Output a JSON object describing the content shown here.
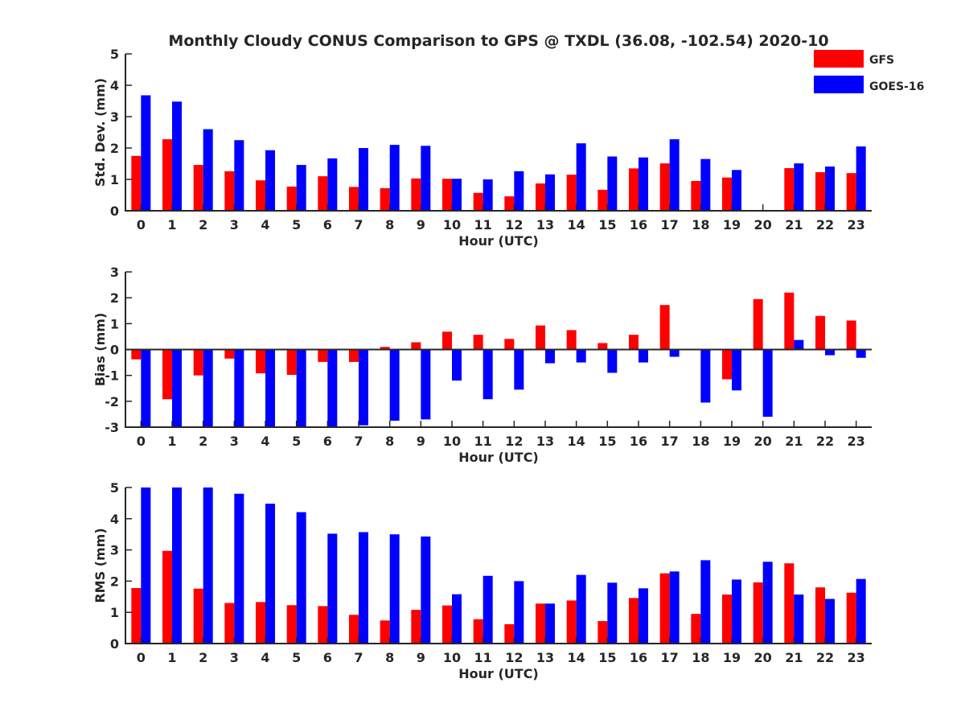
{
  "colors": {
    "gfs": "#ff0000",
    "goes": "#0000ff",
    "axis": "#262626",
    "background": "#ffffff"
  },
  "chart_data": {
    "type": "bar",
    "title": "Monthly Cloudy CONUS Comparison to GPS @ TXDL (36.08, -102.54) 2020-10",
    "legend": {
      "placement": "top-right",
      "entries": [
        "GFS",
        "GOES-16"
      ]
    },
    "categories": [
      "0",
      "1",
      "2",
      "3",
      "4",
      "5",
      "6",
      "7",
      "8",
      "9",
      "10",
      "11",
      "12",
      "13",
      "14",
      "15",
      "16",
      "17",
      "18",
      "19",
      "20",
      "21",
      "22",
      "23"
    ],
    "panels": [
      {
        "ylabel": "Std. Dev. (mm)",
        "xlabel": "Hour (UTC)",
        "ylim": [
          0,
          5
        ],
        "yticks": [
          "0",
          "1",
          "2",
          "3",
          "4",
          "5"
        ],
        "series": [
          {
            "name": "GFS",
            "values": [
              1.75,
              2.28,
              1.46,
              1.26,
              0.97,
              0.77,
              1.1,
              0.76,
              0.72,
              1.03,
              1.02,
              0.57,
              0.46,
              0.87,
              1.15,
              0.67,
              1.35,
              1.51,
              0.95,
              1.06,
              null,
              1.36,
              1.23,
              1.2
            ]
          },
          {
            "name": "GOES-16",
            "values": [
              3.68,
              3.48,
              2.6,
              2.25,
              1.93,
              1.46,
              1.67,
              2.0,
              2.1,
              2.07,
              1.02,
              1.0,
              1.26,
              1.16,
              2.15,
              1.73,
              1.7,
              2.28,
              1.65,
              1.3,
              null,
              1.51,
              1.41,
              2.05
            ]
          }
        ]
      },
      {
        "ylabel": "Bias (mm)",
        "xlabel": "Hour (UTC)",
        "ylim": [
          -3,
          3
        ],
        "yticks": [
          "-3",
          "-2",
          "-1",
          "0",
          "1",
          "2",
          "3"
        ],
        "series": [
          {
            "name": "GFS",
            "values": [
              -0.38,
              -1.92,
              -1.0,
              -0.35,
              -0.92,
              -0.98,
              -0.48,
              -0.48,
              0.1,
              0.28,
              0.69,
              0.57,
              0.41,
              0.93,
              0.75,
              0.25,
              0.57,
              1.72,
              null,
              -1.15,
              1.95,
              2.2,
              1.3,
              1.12
            ]
          },
          {
            "name": "GOES-16",
            "values": [
              -3.0,
              -3.0,
              -3.0,
              -3.0,
              -3.0,
              -3.0,
              -3.0,
              -2.93,
              -2.75,
              -2.7,
              -1.2,
              -1.92,
              -1.55,
              -0.53,
              -0.5,
              -0.9,
              -0.5,
              -0.28,
              -2.05,
              -1.58,
              -2.6,
              0.37,
              -0.22,
              -0.32
            ]
          }
        ]
      },
      {
        "ylabel": "RMS (mm)",
        "xlabel": "Hour (UTC)",
        "ylim": [
          0,
          5
        ],
        "yticks": [
          "0",
          "1",
          "2",
          "3",
          "4",
          "5"
        ],
        "series": [
          {
            "name": "GFS",
            "values": [
              1.78,
              2.97,
              1.76,
              1.3,
              1.33,
              1.23,
              1.2,
              0.92,
              0.74,
              1.08,
              1.22,
              0.78,
              0.62,
              1.28,
              1.38,
              0.72,
              1.46,
              2.25,
              0.95,
              1.57,
              1.96,
              2.57,
              1.8,
              1.63
            ]
          },
          {
            "name": "GOES-16",
            "values": [
              5.0,
              5.0,
              5.0,
              4.8,
              4.48,
              4.21,
              3.52,
              3.57,
              3.5,
              3.43,
              1.58,
              2.17,
              2.0,
              1.28,
              2.2,
              1.95,
              1.77,
              2.31,
              2.67,
              2.05,
              2.62,
              1.57,
              1.43,
              2.07
            ]
          }
        ]
      }
    ]
  }
}
